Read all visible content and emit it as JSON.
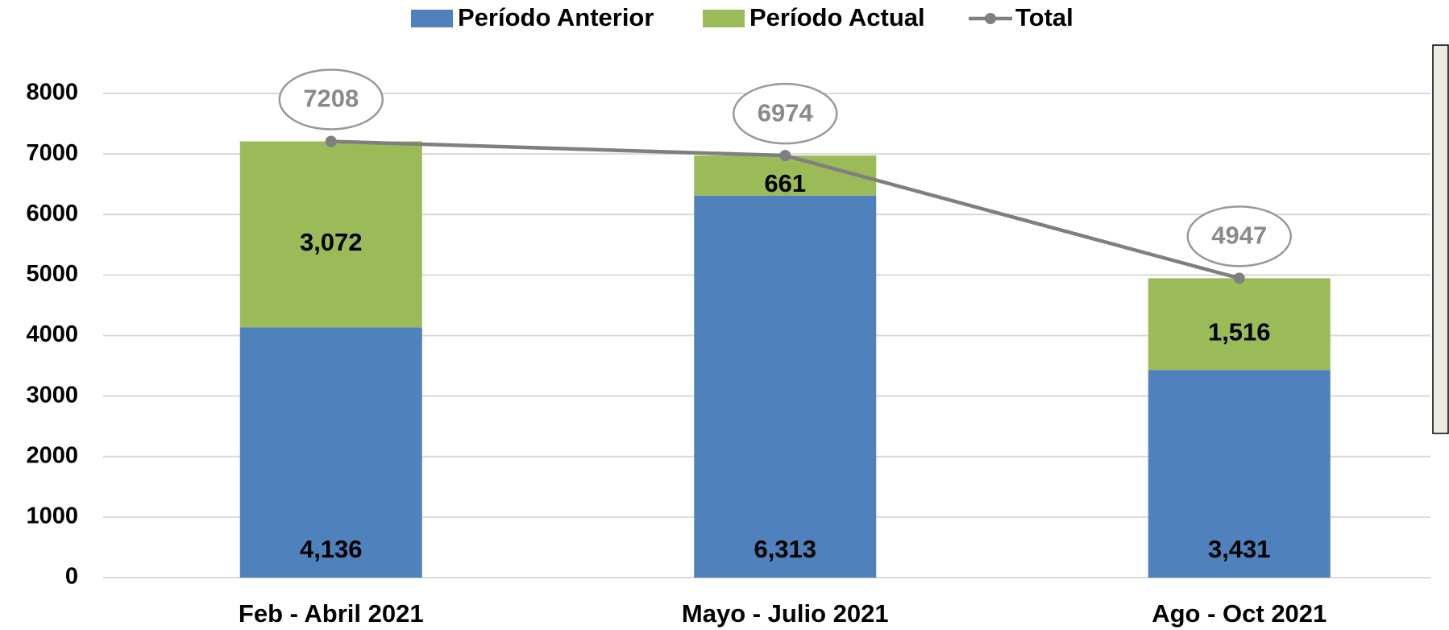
{
  "chart_data": {
    "type": "bar",
    "stacked": true,
    "categories": [
      "Feb - Abril 2021",
      "Mayo - Julio 2021",
      "Ago - Oct 2021"
    ],
    "series": [
      {
        "name": "Período Anterior",
        "color": "#4f81bd",
        "values": [
          4136,
          6313,
          3431
        ],
        "value_labels": [
          "4,136",
          "6,313",
          "3,431"
        ]
      },
      {
        "name": "Período Actual",
        "color": "#9bbb59",
        "values": [
          3072,
          661,
          1516
        ],
        "value_labels": [
          "3,072",
          "661",
          "1,516"
        ]
      },
      {
        "name": "Total",
        "type": "line",
        "color": "#7f7f7f",
        "values": [
          7208,
          6974,
          4947
        ]
      }
    ],
    "ylim": [
      0,
      8000
    ],
    "yticks": [
      0,
      1000,
      2000,
      3000,
      4000,
      5000,
      6000,
      7000,
      8000
    ],
    "grid": true,
    "legend": "top"
  }
}
